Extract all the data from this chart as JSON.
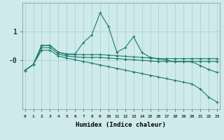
{
  "title": "",
  "xlabel": "Humidex (Indice chaleur)",
  "background_color": "#ceeaea",
  "grid_color": "#aacccc",
  "line_color": "#1a7a6e",
  "x_ticks": [
    0,
    1,
    2,
    3,
    4,
    5,
    6,
    7,
    8,
    9,
    10,
    11,
    12,
    13,
    14,
    15,
    16,
    17,
    18,
    19,
    20,
    21,
    22,
    23
  ],
  "ytick_positions": [
    1.0,
    0.0
  ],
  "ytick_labels": [
    "1",
    "-0"
  ],
  "series": {
    "line1_volatile": {
      "x": [
        0,
        1,
        2,
        3,
        4,
        5,
        6,
        7,
        8,
        9,
        10,
        11,
        12,
        13,
        14,
        15,
        16,
        17,
        18,
        19,
        20,
        21,
        22,
        23
      ],
      "y": [
        -0.35,
        -0.15,
        0.52,
        0.52,
        0.28,
        0.22,
        0.22,
        0.62,
        0.88,
        1.65,
        1.18,
        0.28,
        0.44,
        0.82,
        0.28,
        0.1,
        0.05,
        0.0,
        -0.05,
        -0.05,
        -0.05,
        -0.18,
        -0.32,
        -0.42
      ]
    },
    "line2_upper_flat": {
      "x": [
        0,
        1,
        2,
        3,
        4,
        5,
        6,
        7,
        8,
        9,
        10,
        11,
        12,
        13,
        14,
        15,
        16,
        17,
        18,
        19,
        20,
        21,
        22,
        23
      ],
      "y": [
        -0.35,
        -0.15,
        0.52,
        0.52,
        0.28,
        0.2,
        0.2,
        0.2,
        0.2,
        0.2,
        0.18,
        0.16,
        0.14,
        0.12,
        0.1,
        0.08,
        0.06,
        0.06,
        0.06,
        0.06,
        0.06,
        0.06,
        0.06,
        0.06
      ]
    },
    "line3_mid_flat": {
      "x": [
        0,
        1,
        2,
        3,
        4,
        5,
        6,
        7,
        8,
        9,
        10,
        11,
        12,
        13,
        14,
        15,
        16,
        17,
        18,
        19,
        20,
        21,
        22,
        23
      ],
      "y": [
        -0.35,
        -0.15,
        0.44,
        0.44,
        0.22,
        0.15,
        0.12,
        0.1,
        0.1,
        0.1,
        0.08,
        0.06,
        0.04,
        0.02,
        0.0,
        -0.02,
        -0.04,
        -0.04,
        -0.04,
        -0.04,
        -0.04,
        -0.04,
        -0.04,
        -0.04
      ]
    },
    "line4_descending": {
      "x": [
        0,
        1,
        2,
        3,
        4,
        5,
        6,
        7,
        8,
        9,
        10,
        11,
        12,
        13,
        14,
        15,
        16,
        17,
        18,
        19,
        20,
        21,
        22,
        23
      ],
      "y": [
        -0.35,
        -0.15,
        0.35,
        0.35,
        0.15,
        0.08,
        0.02,
        -0.04,
        -0.1,
        -0.16,
        -0.22,
        -0.28,
        -0.34,
        -0.4,
        -0.46,
        -0.52,
        -0.58,
        -0.64,
        -0.7,
        -0.76,
        -0.82,
        -1.0,
        -1.28,
        -1.45
      ]
    }
  },
  "ylim": [
    -1.7,
    2.0
  ],
  "xlim": [
    -0.3,
    23.3
  ]
}
